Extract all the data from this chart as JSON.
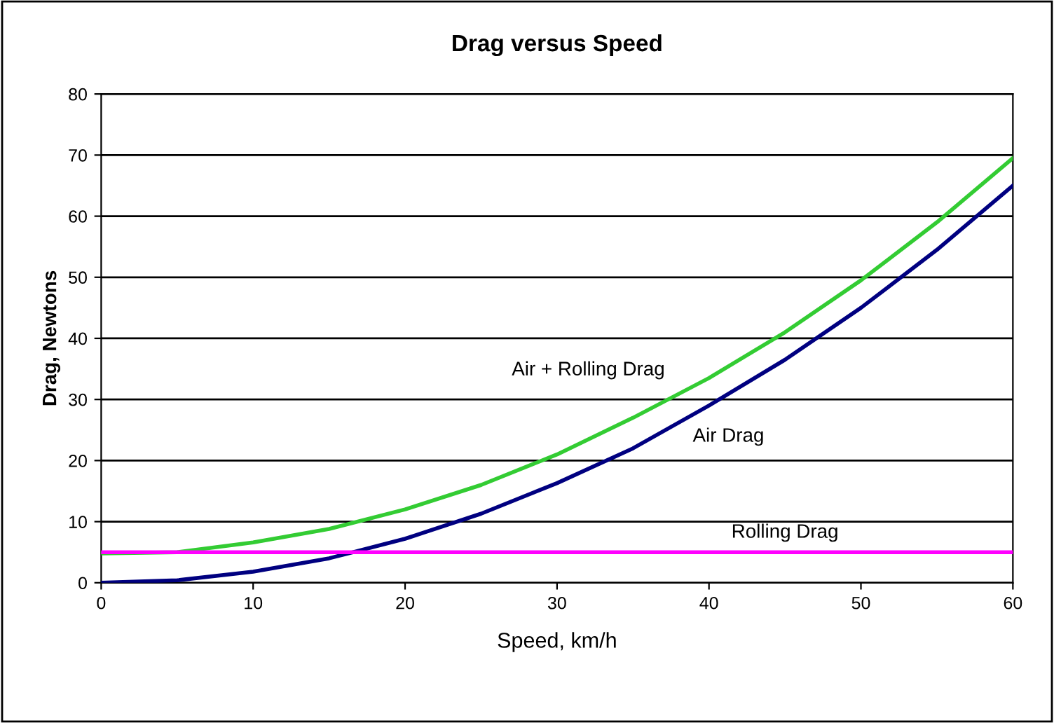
{
  "chart_data": {
    "type": "line",
    "title": "Drag versus Speed",
    "xlabel": "Speed, km/h",
    "ylabel": "Drag, Newtons",
    "x": [
      0,
      5,
      10,
      15,
      20,
      25,
      30,
      35,
      40,
      45,
      50,
      55,
      60
    ],
    "series": [
      {
        "name": "Air + Rolling Drag",
        "color": "#33cc33",
        "values": [
          4.8,
          5,
          6.6,
          8.8,
          12,
          16,
          21,
          27,
          33.5,
          41,
          49.5,
          59,
          69.5
        ]
      },
      {
        "name": "Air Drag",
        "color": "#000080",
        "values": [
          0,
          0.4,
          1.8,
          4,
          7.2,
          11.3,
          16.3,
          22,
          29,
          36.5,
          45,
          54.5,
          65
        ]
      },
      {
        "name": "Rolling Drag",
        "color": "#ff00ff",
        "values": [
          5,
          5,
          5,
          5,
          5,
          5,
          5,
          5,
          5,
          5,
          5,
          5,
          5
        ]
      }
    ],
    "xlim": [
      0,
      60
    ],
    "xticks": [
      0,
      10,
      20,
      30,
      40,
      50,
      60
    ],
    "ylim": [
      0,
      80
    ],
    "yticks": [
      0,
      10,
      20,
      30,
      40,
      50,
      60,
      70,
      80
    ],
    "grid": "y",
    "legend": false,
    "marker": "none",
    "line_style": "solid"
  }
}
